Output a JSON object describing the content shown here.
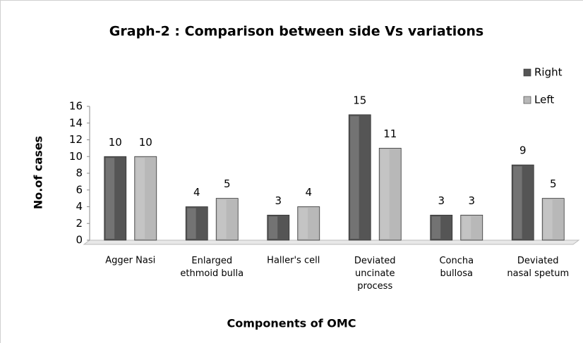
{
  "chart_data": {
    "type": "bar",
    "title": "Graph-2 : Comparison between side Vs variations",
    "x_label": "Components of OMC",
    "y_label": "No.of cases",
    "categories": [
      "Agger Nasi",
      "Enlarged ethmoid bulla",
      "Haller's cell",
      "Deviated uncinate process",
      "Concha bullosa",
      "Deviated nasal spetum"
    ],
    "series": [
      {
        "name": "Right",
        "color": "#555555",
        "values": [
          10,
          4,
          3,
          15,
          3,
          9
        ]
      },
      {
        "name": "Left",
        "color": "#b8b8b8",
        "values": [
          10,
          5,
          4,
          11,
          3,
          5
        ]
      }
    ],
    "ylim": [
      0,
      16
    ],
    "yticks": [
      0,
      2,
      4,
      6,
      8,
      10,
      12,
      14,
      16
    ],
    "grid": false,
    "legend": "top-right"
  }
}
